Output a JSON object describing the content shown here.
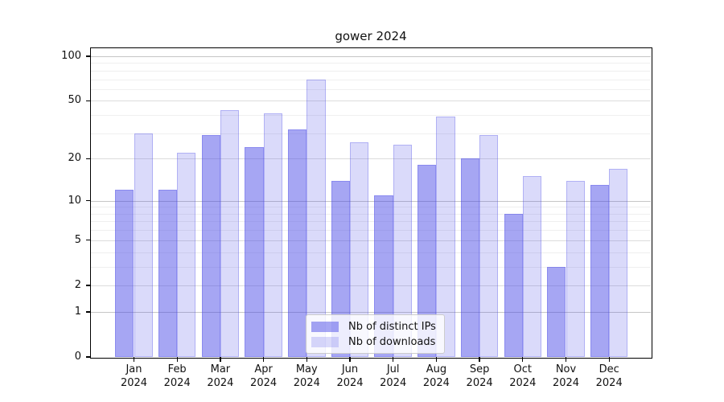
{
  "chart_data": {
    "type": "bar",
    "title": "gower 2024",
    "categories": [
      "Jan 2024",
      "Feb 2024",
      "Mar 2024",
      "Apr 2024",
      "May 2024",
      "Jun 2024",
      "Jul 2024",
      "Aug 2024",
      "Sep 2024",
      "Oct 2024",
      "Nov 2024",
      "Dec 2024"
    ],
    "series": [
      {
        "key": "ips",
        "name": "Nb of distinct IPs",
        "color": "rgba(70,70,230,0.48)",
        "values": [
          12,
          12,
          29,
          24,
          32,
          14,
          11,
          18,
          20,
          8,
          3,
          13
        ]
      },
      {
        "key": "downloads",
        "name": "Nb of downloads",
        "color": "rgba(70,70,230,0.20)",
        "values": [
          30,
          22,
          43,
          41,
          70,
          26,
          25,
          39,
          29,
          15,
          14,
          17
        ]
      }
    ],
    "xlabel": "",
    "ylabel": "",
    "yscale": "log1p",
    "ylim": [
      0,
      110
    ],
    "y_ticks": [
      0,
      1,
      2,
      5,
      10,
      20,
      50,
      100
    ],
    "grid": {
      "decade_lines": [
        1,
        10,
        100
      ],
      "mid_lines": [
        2,
        5,
        20,
        50
      ],
      "minor_lines": [
        3,
        4,
        6,
        7,
        8,
        9,
        30,
        40,
        60,
        70,
        80,
        90
      ]
    },
    "legend_position": "lower center",
    "legend_items": [
      "Nb of distinct IPs",
      "Nb of downloads"
    ]
  },
  "colors": {
    "bar_ips": "rgba(70,70,230,0.48)",
    "bar_downloads": "rgba(70,70,230,0.20)",
    "grid_decade": "#c6c6c6",
    "grid_mid": "#dcdcdc",
    "grid_minor": "#efefef",
    "spine": "#000000"
  }
}
